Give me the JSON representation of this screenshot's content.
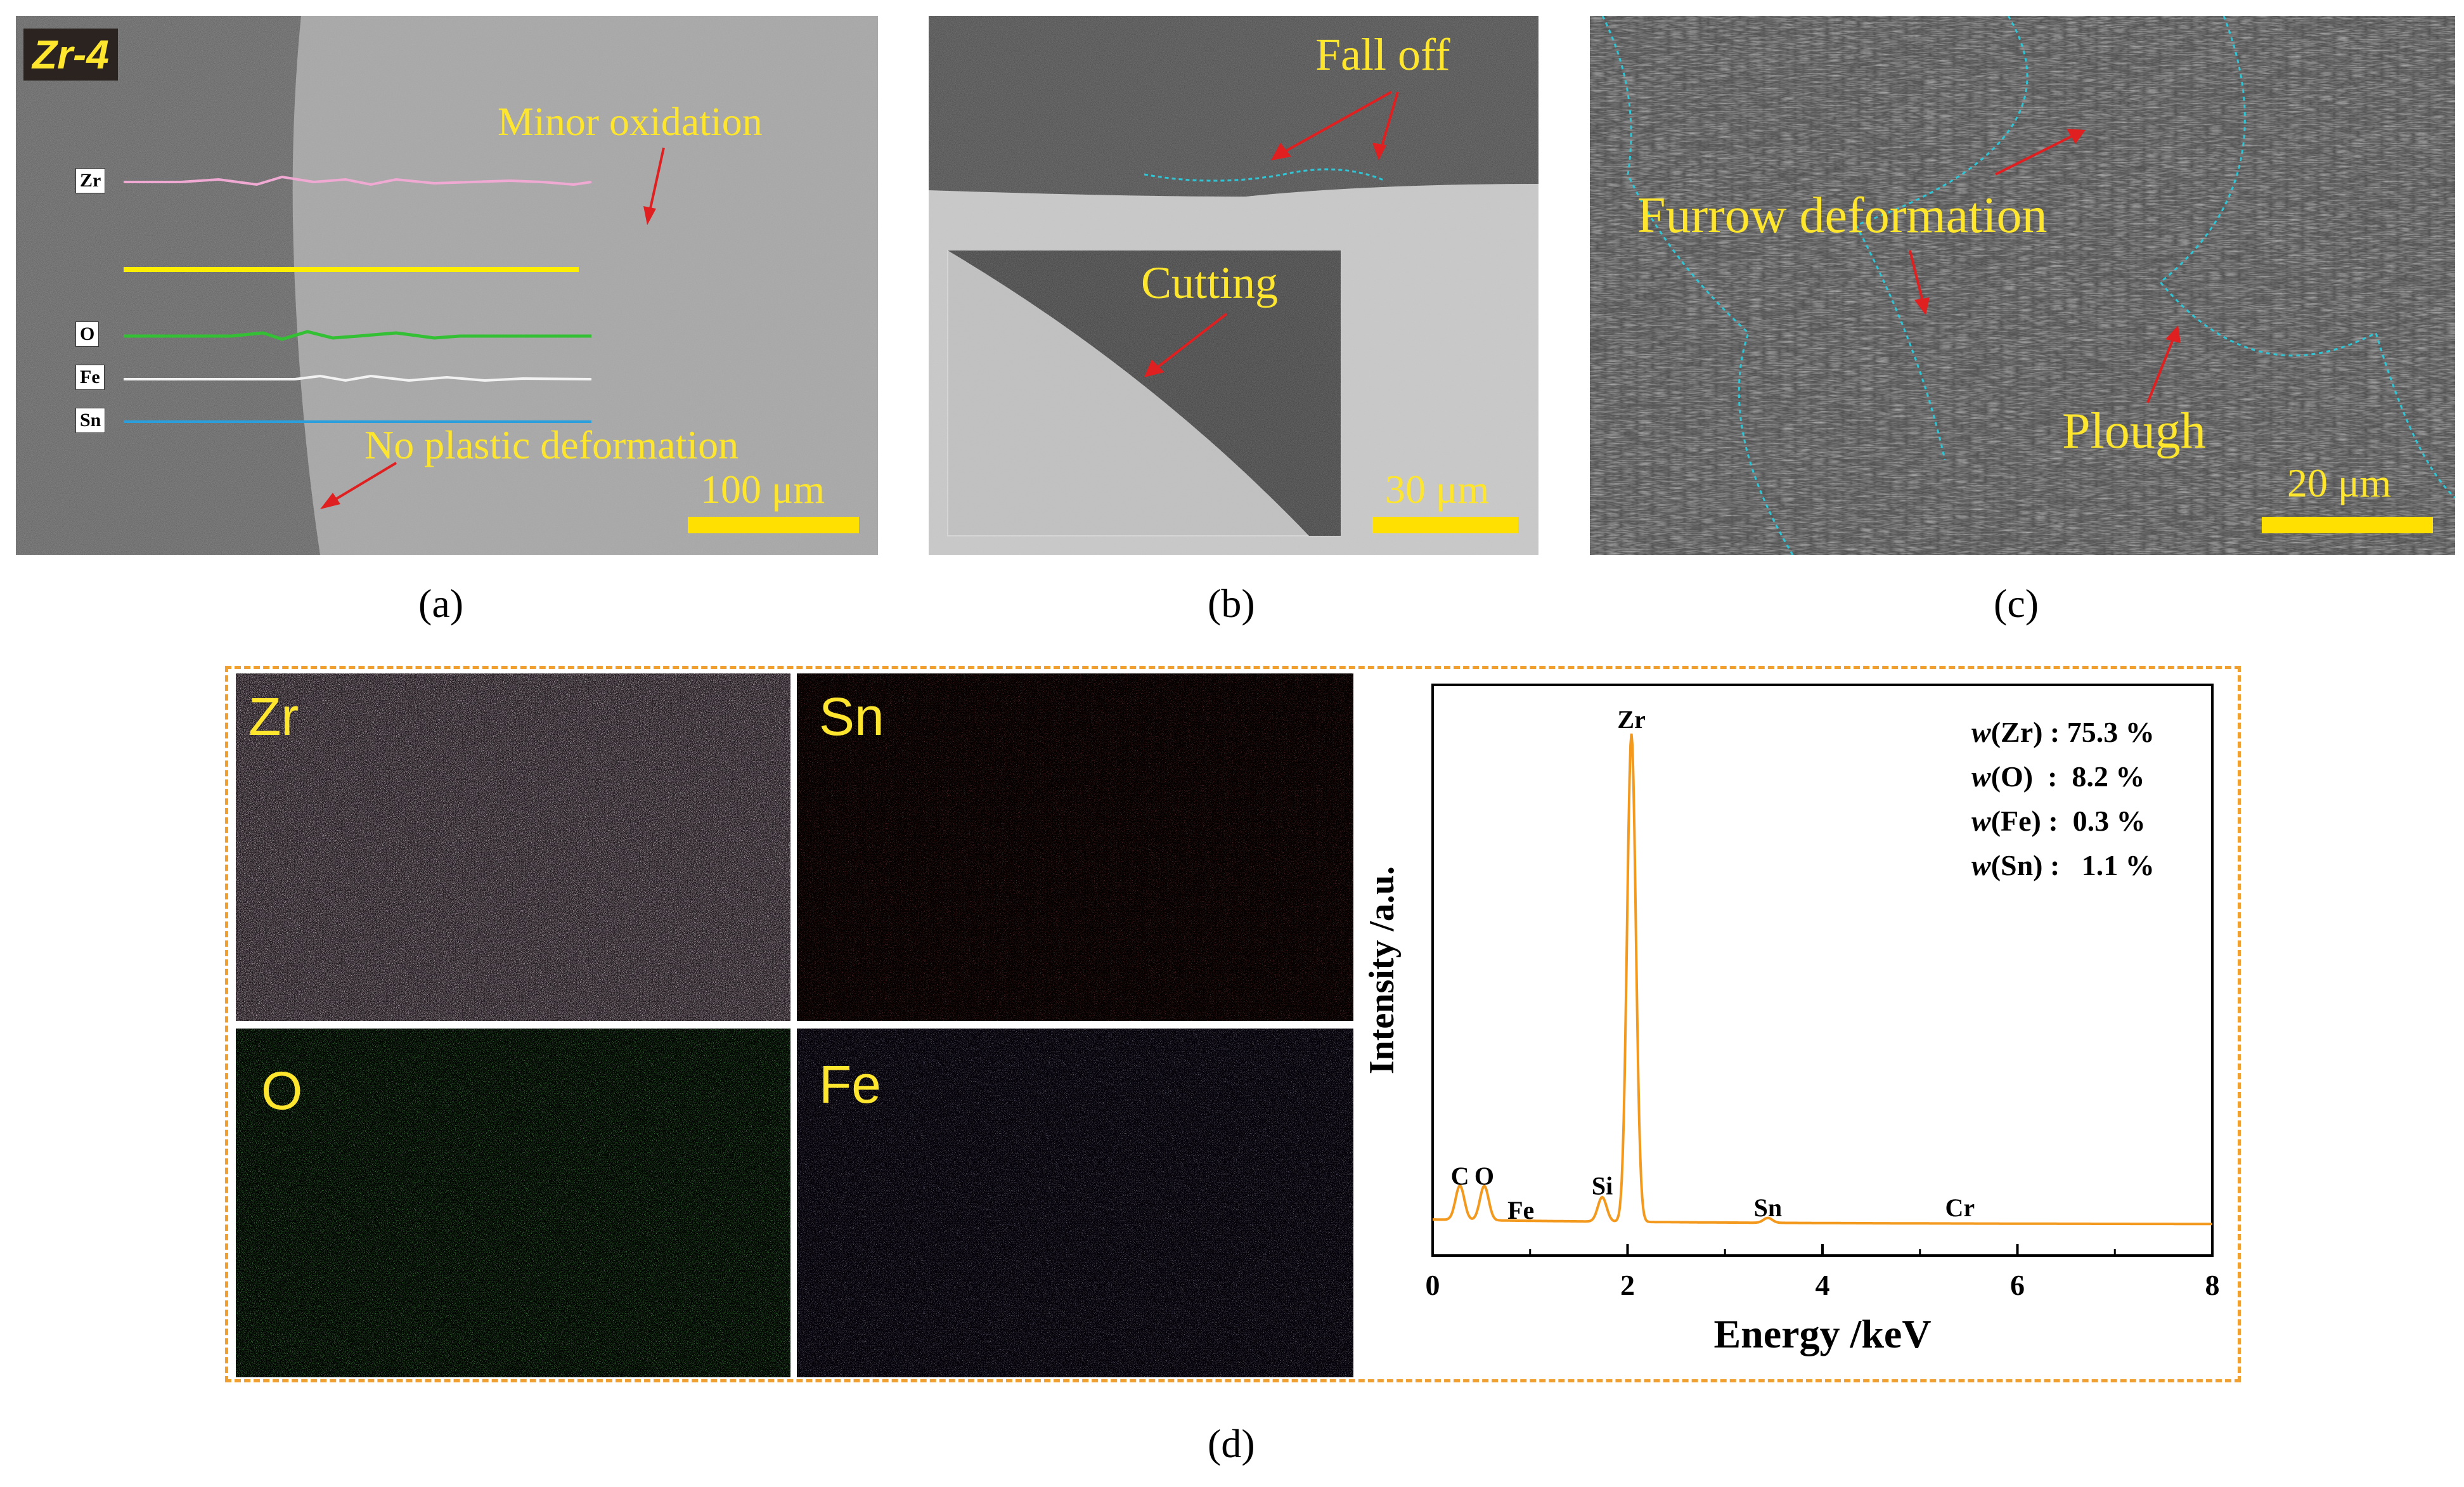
{
  "panel_a": {
    "tag": "Zr-4",
    "annotations": {
      "minor_oxidation": "Minor oxidation",
      "no_plastic": "No plastic deformation"
    },
    "line_labels": [
      "Zr",
      "O",
      "Fe",
      "Sn"
    ],
    "scale": "100 μm",
    "caption": "(a)"
  },
  "panel_b": {
    "annotations": {
      "fall_off": "Fall off",
      "cutting": "Cutting"
    },
    "scale": "30 μm",
    "caption": "(b)"
  },
  "panel_c": {
    "annotations": {
      "furrow": "Furrow deformation",
      "plough": "Plough"
    },
    "scale": "20 μm",
    "caption": "(c)"
  },
  "panel_d": {
    "maps": [
      {
        "element": "Zr",
        "color": "#e6bcd4"
      },
      {
        "element": "Sn",
        "color": "#d23c3c"
      },
      {
        "element": "O",
        "color": "#3cc83c"
      },
      {
        "element": "Fe",
        "color": "#a090d8"
      }
    ],
    "composition": [
      {
        "label": "w(Zr) : 75.3 %",
        "sym": "w",
        "rest": "(Zr) : 75.3 %"
      },
      {
        "label": "w(O)  :  8.2 %",
        "sym": "w",
        "rest": "(O)  :  8.2 %"
      },
      {
        "label": "w(Fe) :  0.3 %",
        "sym": "w",
        "rest": "(Fe) :  0.3 %"
      },
      {
        "label": "w(Sn) :   1.1 %",
        "sym": "w",
        "rest": "(Sn) :   1.1 %"
      }
    ],
    "caption": "(d)"
  },
  "chart_data": {
    "type": "line",
    "xlabel": "Energy /keV",
    "ylabel": "Intensity /a.u.",
    "xlim": [
      0,
      8
    ],
    "x_ticks": [
      "0",
      "2",
      "4",
      "6",
      "8"
    ],
    "line_color": "#f39a1e",
    "peaks": [
      {
        "label": "C",
        "x": 0.28,
        "height": 0.07
      },
      {
        "label": "O",
        "x": 0.53,
        "height": 0.07
      },
      {
        "label": "Fe",
        "x": 0.71,
        "height": 0.0
      },
      {
        "label": "Si",
        "x": 1.74,
        "height": 0.05
      },
      {
        "label": "Zr",
        "x": 2.04,
        "height": 1.0
      },
      {
        "label": "Sn",
        "x": 3.44,
        "height": 0.01
      },
      {
        "label": "Cr",
        "x": 5.41,
        "height": 0.0
      }
    ]
  }
}
